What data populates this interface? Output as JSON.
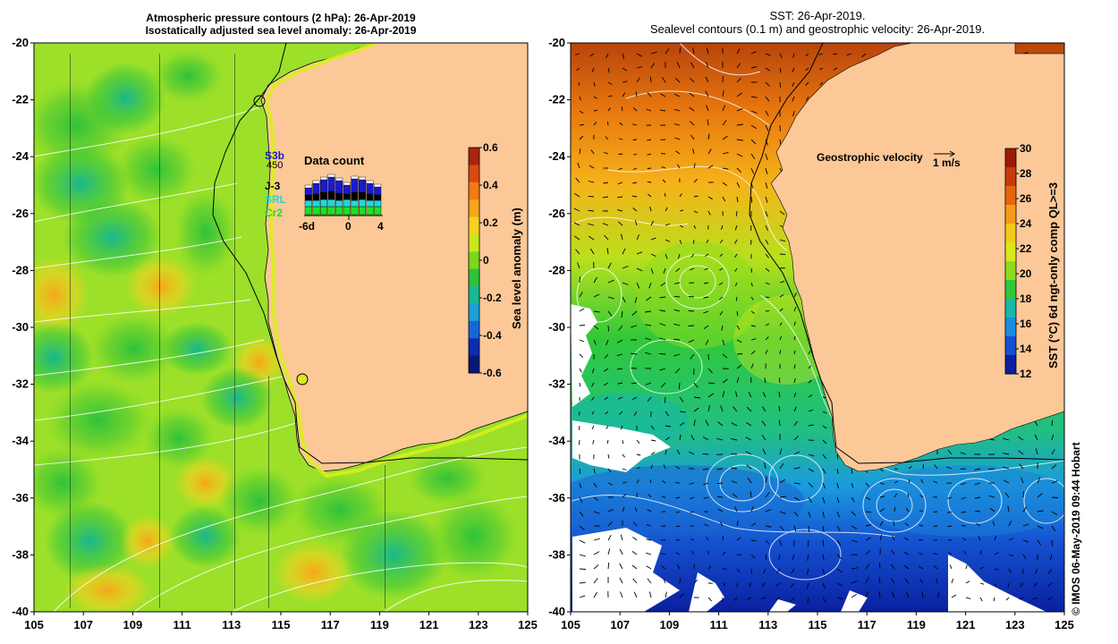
{
  "left_panel": {
    "title_line1": "Atmospheric pressure contours (2 hPa): 26-Apr-2019",
    "title_line2": "Isostatically adjusted sea level anomaly: 26-Apr-2019",
    "colorbar": {
      "label": "Sea level anomaly (m)",
      "ticks": [
        "0.6",
        "0.4",
        "0.2",
        "0",
        "-0.2",
        "-0.4",
        "-0.6"
      ],
      "colors": [
        "#a8240b",
        "#d84a10",
        "#f07a14",
        "#f5a61a",
        "#f5d21e",
        "#c9e81c",
        "#7ad81e",
        "#2ec23a",
        "#18b890",
        "#1aa0d8",
        "#1466d8",
        "#0c2cb0",
        "#061878"
      ]
    },
    "data_count": {
      "title": "Data count",
      "max_label": "450",
      "x_ticks": [
        "-6d",
        "0",
        "4"
      ],
      "missions": [
        {
          "name": "S3b",
          "color": "#1a1acc"
        },
        {
          "name": "J-3",
          "color": "#000000"
        },
        {
          "name": "SRL",
          "color": "#20d8d8"
        },
        {
          "name": "Cr2",
          "color": "#20e020"
        }
      ]
    }
  },
  "right_panel": {
    "title_line1": "SST: 26-Apr-2019.",
    "title_line2": "Sealevel contours (0.1 m) and geostrophic velocity: 26-Apr-2019.",
    "velocity_legend": "Geostrophic velocity",
    "velocity_scale": "1 m/s",
    "colorbar": {
      "label": "SST (°C) 6d ngt-only comp QL>=3",
      "ticks": [
        "30",
        "28",
        "26",
        "24",
        "22",
        "20",
        "18",
        "16",
        "14",
        "12"
      ],
      "colors": [
        "#9a1a08",
        "#c83a0c",
        "#e8640e",
        "#f59a18",
        "#f5c81c",
        "#d8e81c",
        "#8cdc1e",
        "#30c83a",
        "#18b8a8",
        "#1a8ce0",
        "#1450d0",
        "#0a20a0"
      ]
    }
  },
  "axes": {
    "x_ticks": [
      "105",
      "107",
      "109",
      "111",
      "113",
      "115",
      "117",
      "119",
      "121",
      "123",
      "125"
    ],
    "y_ticks": [
      "-20",
      "-22",
      "-24",
      "-26",
      "-28",
      "-30",
      "-32",
      "-34",
      "-36",
      "-38",
      "-40"
    ]
  },
  "credit": "© IMOS 06-May-2019 09:44 Hobart",
  "colors": {
    "land": "#fcc898",
    "ocean_left": "#9ce02a",
    "coast_line": "#000000"
  }
}
